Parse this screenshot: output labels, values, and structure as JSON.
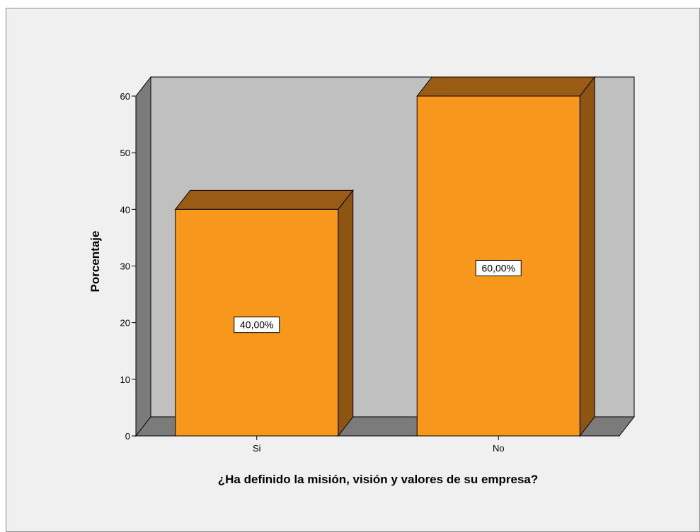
{
  "chart_data": {
    "type": "bar",
    "categories": [
      "Si",
      "No"
    ],
    "values": [
      40,
      60
    ],
    "data_labels": [
      "40,00%",
      "60,00%"
    ],
    "title": "",
    "xlabel": "¿Ha definido la misión, visión y valores de su empresa?",
    "ylabel": "Porcentaje",
    "ylim": [
      0,
      60
    ],
    "yticks": [
      "0",
      "10",
      "20",
      "30",
      "40",
      "50",
      "60"
    ],
    "grid": false,
    "legend": "none",
    "style": "3d",
    "colors": {
      "bar_front": "#f7981d",
      "bar_top": "#9a5b14",
      "bar_side": "#8e5411",
      "wall": "#c0c0c0",
      "floor": "#7b7b7b",
      "side_wall": "#7b7b7b",
      "frame_bg": "#f0f0f0"
    }
  }
}
